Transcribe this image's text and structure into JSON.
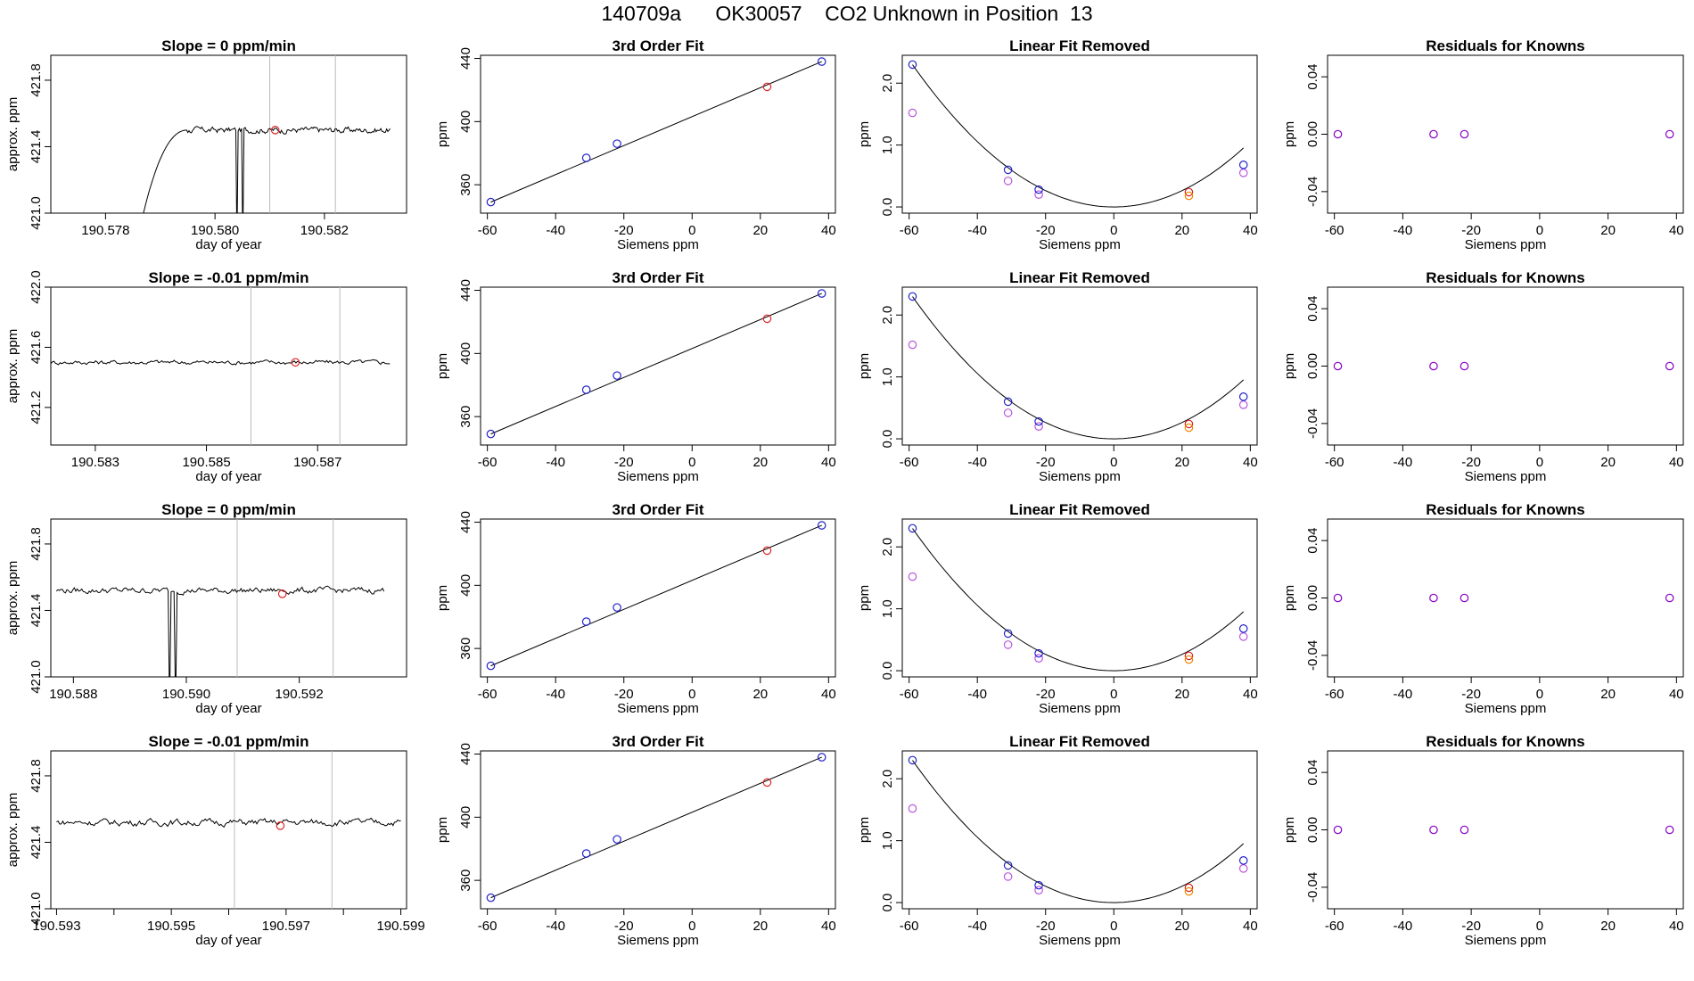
{
  "title": "140709a      OK30057    CO2 Unknown in Position  13",
  "chart_data": [
    {
      "type": "line",
      "title": "Slope =  0  ppm/min",
      "xlabel": "day of year",
      "ylabel": "approx. ppm",
      "xlim": [
        190.577,
        190.5835
      ],
      "ylim": [
        421.0,
        421.95
      ],
      "xticks": [
        190.578,
        190.58,
        190.582
      ],
      "xtick_labels": [
        "190.578",
        "190.580",
        "190.582"
      ],
      "yticks": [
        421.0,
        421.4,
        421.8
      ],
      "ytick_labels": [
        "421.0",
        "421.4",
        "421.8"
      ],
      "vlines": [
        190.581,
        190.5822
      ],
      "drops": [
        190.5804,
        190.5805
      ],
      "start": 190.5785,
      "rise_end": 190.5795,
      "level": 421.5,
      "start_level": 421.0,
      "noise_amp": 0.018,
      "marker": {
        "x": 190.5811,
        "y": 421.5
      },
      "end": 190.5832
    },
    {
      "type": "line",
      "title": "Slope =  -0.01  ppm/min",
      "xlabel": "day of year",
      "ylabel": "approx. ppm",
      "xlim": [
        190.5822,
        190.5886
      ],
      "ylim": [
        420.95,
        422.0
      ],
      "xticks": [
        190.583,
        190.585,
        190.587
      ],
      "xtick_labels": [
        "190.583",
        "190.585",
        "190.587"
      ],
      "yticks": [
        421.2,
        421.6,
        422.0
      ],
      "ytick_labels": [
        "421.2",
        "421.6",
        "422.0"
      ],
      "vlines": [
        190.5858,
        190.5874
      ],
      "drops": [],
      "start": 190.5822,
      "rise_end": 190.5822,
      "level": 421.5,
      "start_level": 421.5,
      "noise_amp": 0.015,
      "marker": {
        "x": 190.5866,
        "y": 421.5
      },
      "end": 190.5883
    },
    {
      "type": "line",
      "title": "Slope =  0  ppm/min",
      "xlabel": "day of year",
      "ylabel": "approx. ppm",
      "xlim": [
        190.5876,
        190.5939
      ],
      "ylim": [
        421.0,
        421.95
      ],
      "xticks": [
        190.588,
        190.59,
        190.592
      ],
      "xtick_labels": [
        "190.588",
        "190.590",
        "190.592"
      ],
      "yticks": [
        421.0,
        421.4,
        421.8
      ],
      "ytick_labels": [
        "421.0",
        "421.4",
        "421.8"
      ],
      "vlines": [
        190.5909,
        190.5926
      ],
      "drops": [
        190.5897,
        190.5898
      ],
      "start": 190.5877,
      "rise_end": 190.5877,
      "level": 421.52,
      "start_level": 421.52,
      "noise_amp": 0.018,
      "marker": {
        "x": 190.5917,
        "y": 421.5
      },
      "end": 190.5935
    },
    {
      "type": "line",
      "title": "Slope =  -0.01  ppm/min",
      "xlabel": "day of year",
      "ylabel": "approx. ppm",
      "xlim": [
        190.5929,
        190.5991
      ],
      "ylim": [
        421.0,
        421.95
      ],
      "xticks": [
        190.593,
        190.594,
        190.595,
        190.596,
        190.597,
        190.598,
        190.599
      ],
      "xtick_labels": [
        "190.593",
        "",
        "190.595",
        "",
        "190.597",
        "",
        "190.599"
      ],
      "yticks": [
        421.0,
        421.4,
        421.8
      ],
      "ytick_labels": [
        "421.0",
        "421.4",
        "421.8"
      ],
      "vlines": [
        190.5961,
        190.5978
      ],
      "drops": [],
      "start": 190.593,
      "rise_end": 190.593,
      "level": 421.52,
      "start_level": 421.52,
      "noise_amp": 0.02,
      "marker": {
        "x": 190.5969,
        "y": 421.5
      },
      "end": 190.599
    },
    {
      "type": "scatter",
      "title": "3rd Order Fit",
      "xlabel": "Siemens ppm",
      "ylabel": "ppm",
      "xlim": [
        -62,
        42
      ],
      "ylim": [
        342,
        442
      ],
      "xticks": [
        -60,
        -40,
        -20,
        0,
        20,
        40
      ],
      "xtick_labels": [
        "-60",
        "-40",
        "-20",
        "0",
        "20",
        "40"
      ],
      "yticks": [
        360,
        400,
        440
      ],
      "ytick_labels": [
        "360",
        "400",
        "440"
      ],
      "knowns": {
        "x": [
          -59,
          -31,
          -22,
          38
        ],
        "y": [
          349,
          377,
          386,
          438
        ]
      },
      "unknown": {
        "x": [
          22
        ],
        "y": [
          422
        ]
      }
    },
    {
      "type": "scatter",
      "title": "Linear Fit Removed",
      "xlabel": "Siemens ppm",
      "ylabel": "ppm",
      "xlim": [
        -62,
        42
      ],
      "ylim": [
        -0.1,
        2.45
      ],
      "xticks": [
        -60,
        -40,
        -20,
        0,
        20,
        40
      ],
      "xtick_labels": [
        "-60",
        "-40",
        "-20",
        "0",
        "20",
        "40"
      ],
      "yticks": [
        0,
        1,
        2
      ],
      "ytick_labels": [
        "0.0",
        "1.0",
        "2.0"
      ],
      "curve_a": 0.00066,
      "knowns": {
        "x": [
          -59,
          -31,
          -22,
          38
        ],
        "y": [
          2.3,
          0.6,
          0.28,
          0.68
        ]
      },
      "knowns_alt": {
        "x": [
          -59,
          -31,
          -22,
          38
        ],
        "y": [
          1.52,
          0.42,
          0.2,
          0.55
        ]
      },
      "unknown": {
        "x": [
          22,
          22
        ],
        "y": [
          0.24,
          0.18
        ]
      }
    },
    {
      "type": "scatter",
      "title": "Residuals for Knowns",
      "xlabel": "Siemens ppm",
      "ylabel": "ppm",
      "xlim": [
        -62,
        42
      ],
      "ylim": [
        -0.055,
        0.055
      ],
      "xticks": [
        -60,
        -40,
        -20,
        0,
        20,
        40
      ],
      "xtick_labels": [
        "-60",
        "-40",
        "-20",
        "0",
        "20",
        "40"
      ],
      "yticks": [
        -0.04,
        0,
        0.04
      ],
      "ytick_labels": [
        "-0.04",
        "0.00",
        "0.04"
      ],
      "residuals": {
        "x": [
          -59,
          -31,
          -22,
          38
        ],
        "y": [
          0,
          0,
          0,
          0
        ]
      }
    }
  ],
  "colors": {
    "known": "#2222cc",
    "unknown": "#dd2222",
    "unknown_alt": "#ee8800",
    "alt": "#bb55dd",
    "residual": "#8800cc",
    "guide": "#bbbbbb",
    "line": "#000000"
  }
}
